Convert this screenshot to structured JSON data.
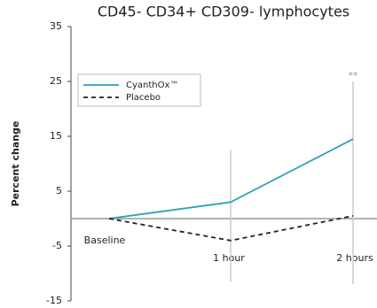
{
  "chart_data": {
    "type": "line",
    "title": "CD45- CD34+ CD309-  lymphocytes",
    "y_label": "Percent change",
    "categories": [
      "Baseline",
      "1 hour",
      "2 hours"
    ],
    "series": [
      {
        "name": "CyanthOx™",
        "color": "#2aa3b5",
        "dashed": false,
        "values": [
          0,
          3,
          14.5
        ],
        "error_low": [
          null,
          -11.5,
          -12
        ],
        "error_high": [
          null,
          12.5,
          25
        ]
      },
      {
        "name": "Placebo",
        "color": "#222222",
        "dashed": true,
        "values": [
          0,
          -4,
          0.5
        ]
      }
    ],
    "annotation": "**",
    "ylim": [
      -15,
      35
    ],
    "yticks": [
      35,
      25,
      15,
      5,
      -5,
      -15
    ],
    "zero_line": true
  }
}
